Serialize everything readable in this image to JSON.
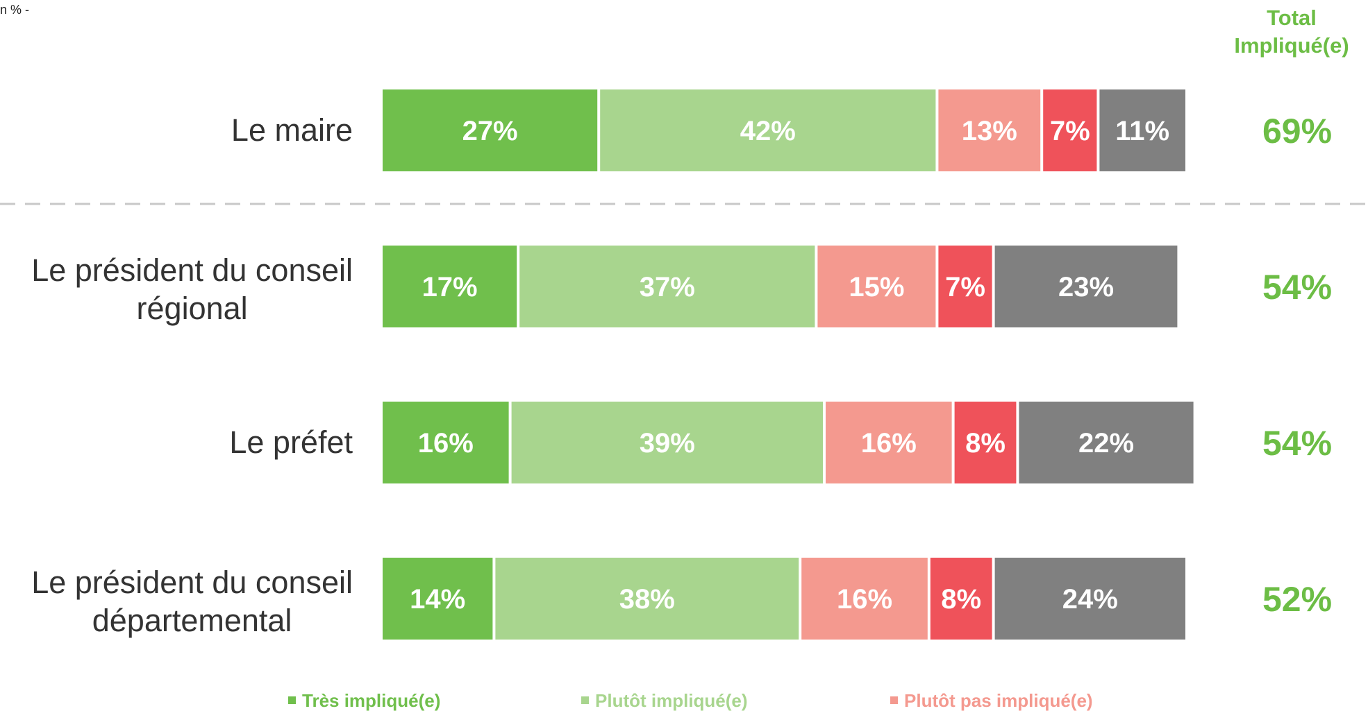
{
  "header": {
    "corner_note": "n % -",
    "total_title_line1": "Total",
    "total_title_line2": "Impliqué(e)"
  },
  "chart_data": {
    "type": "bar",
    "orientation": "horizontal",
    "stacked": true,
    "normalized": true,
    "xlim": [
      0,
      100
    ],
    "categories": [
      [
        "Le maire"
      ],
      [
        "Le président du conseil",
        "régional"
      ],
      [
        "Le préfet"
      ],
      [
        "Le président du conseil",
        "départemental"
      ]
    ],
    "series": [
      {
        "name": "Très impliqué(e)",
        "color": "#70bf4c",
        "values": [
          27,
          17,
          16,
          14
        ]
      },
      {
        "name": "Plutôt impliqué(e)",
        "color": "#a8d58e",
        "values": [
          42,
          37,
          39,
          38
        ]
      },
      {
        "name": "Plutôt pas impliqué(e)",
        "color": "#f4998f",
        "values": [
          13,
          15,
          16,
          16
        ]
      },
      {
        "color": "#ef525a",
        "values": [
          7,
          7,
          8,
          8
        ]
      },
      {
        "color": "#808080",
        "values": [
          11,
          23,
          22,
          24
        ]
      }
    ],
    "totals": [
      69,
      54,
      54,
      52
    ],
    "totals_color": "#6cbd45",
    "value_label_suffix": "%",
    "legend_position": "bottom"
  }
}
